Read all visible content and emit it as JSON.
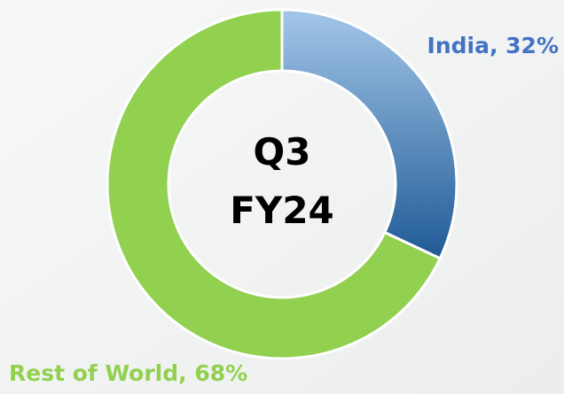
{
  "chart_data": {
    "type": "donut",
    "values": [
      32,
      68
    ],
    "value_labels": [
      "India, 32%",
      "Rest of World, 68%"
    ],
    "colors": [
      "#1f5a96",
      "#92d050"
    ],
    "label_colors": [
      "#4472c4",
      "#92d050"
    ],
    "center_text": [
      "Q3",
      "FY24"
    ]
  }
}
